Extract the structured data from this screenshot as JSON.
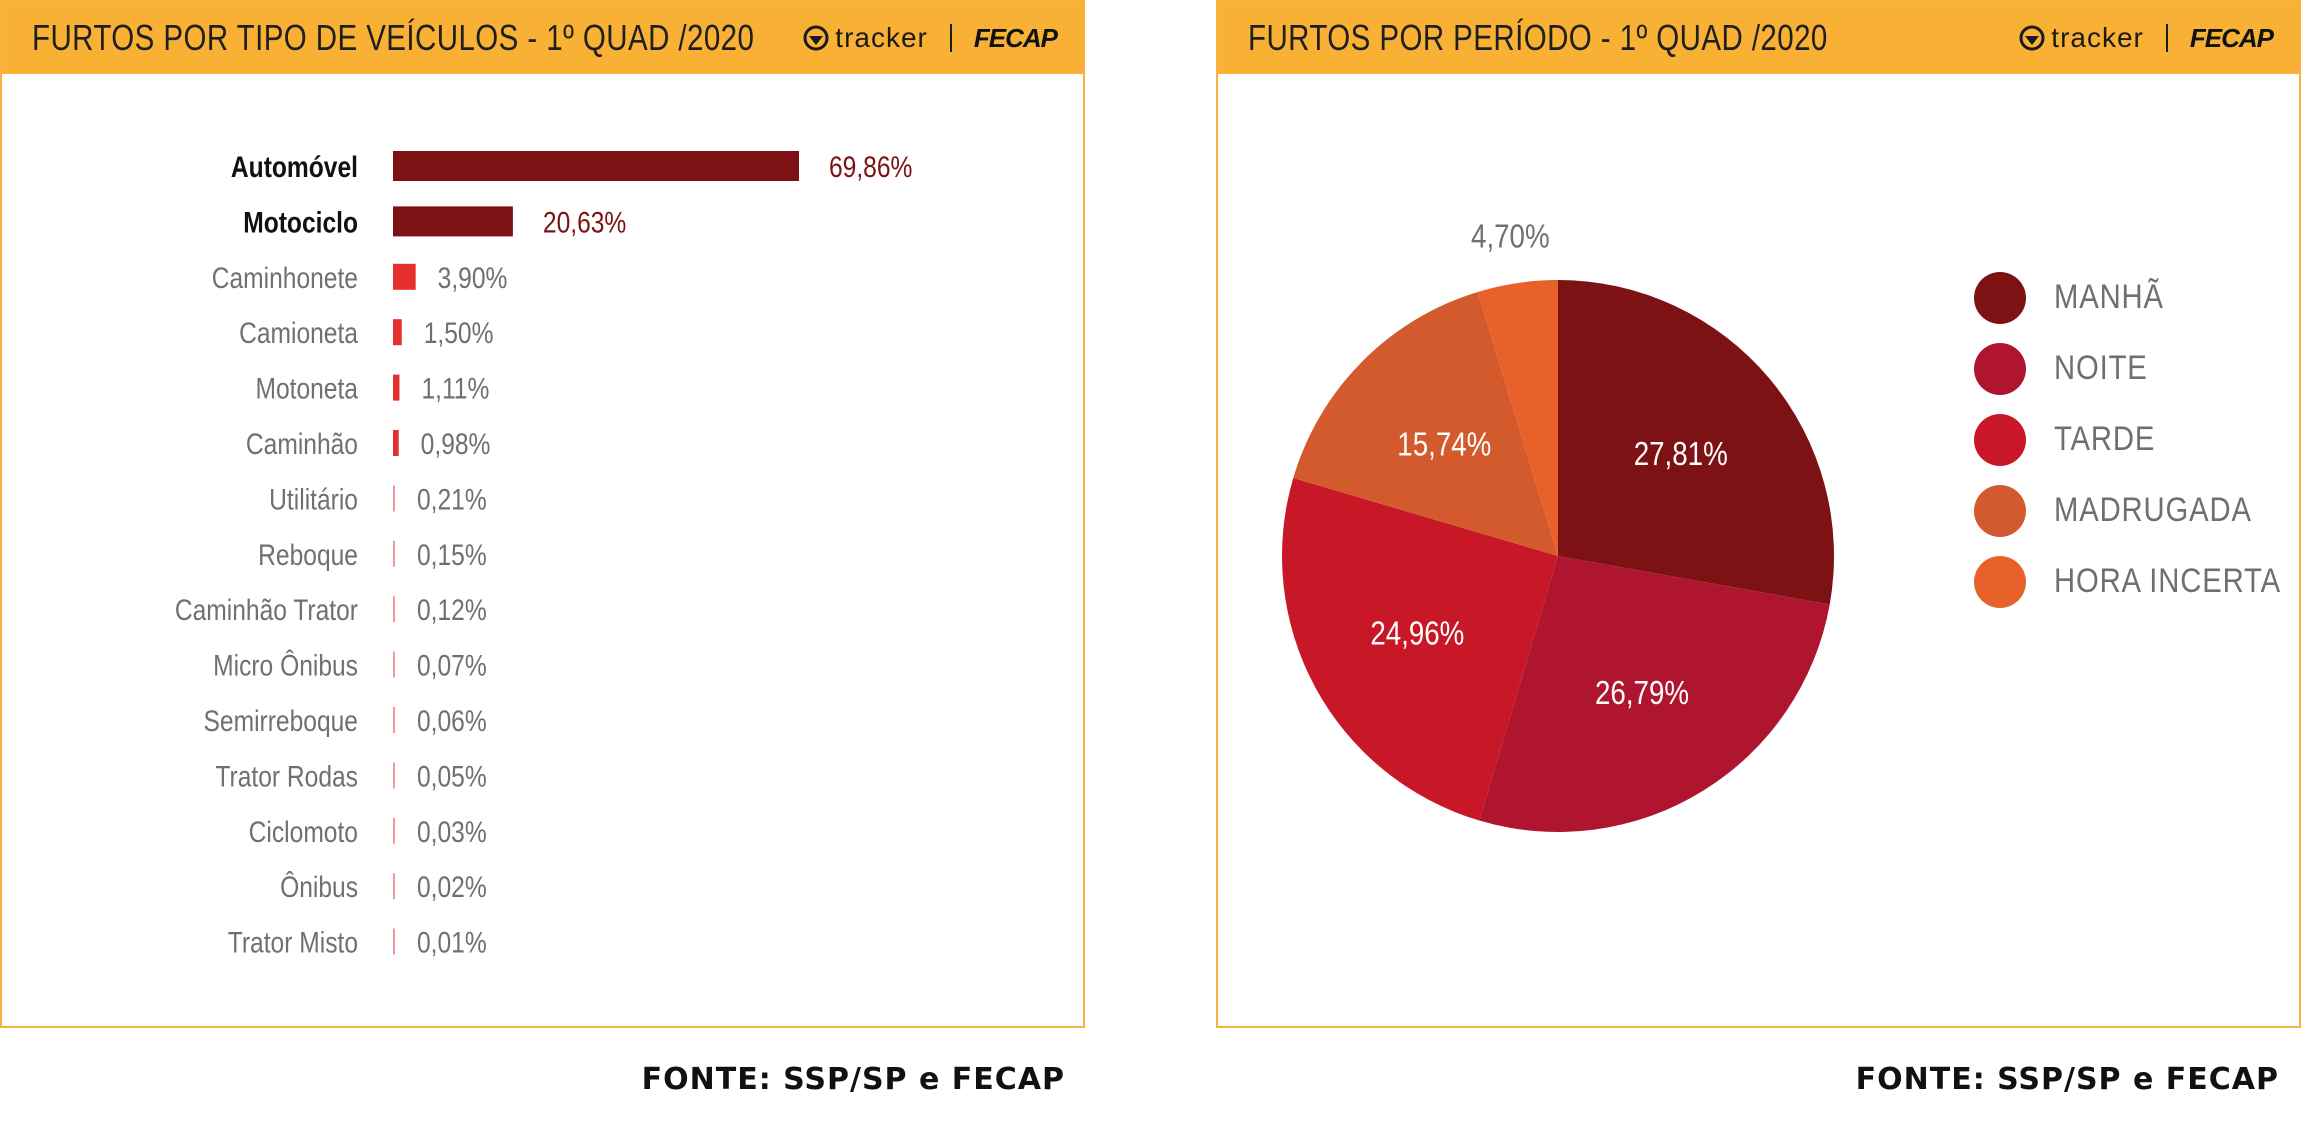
{
  "brand": {
    "name": "tracker",
    "partner": "FECAP",
    "icon": "tracker-logo-icon"
  },
  "left": {
    "title": "FURTOS POR TIPO DE VEÍCULOS - 1º QUAD /2020",
    "source": "FONTE: SSP/SP e FECAP"
  },
  "right": {
    "title": "FURTOS POR PERÍODO - 1º QUAD /2020",
    "source": "FONTE: SSP/SP e FECAP"
  },
  "chart_data": [
    {
      "type": "bar",
      "orientation": "horizontal",
      "title": "FURTOS POR TIPO DE VEÍCULOS - 1º QUAD /2020",
      "categories": [
        "Automóvel",
        "Motociclo",
        "Caminhonete",
        "Camioneta",
        "Motoneta",
        "Caminhão",
        "Utilitário",
        "Reboque",
        "Caminhão Trator",
        "Micro Ônibus",
        "Semirreboque",
        "Trator Rodas",
        "Ciclomoto",
        "Ônibus",
        "Trator Misto"
      ],
      "values": [
        69.86,
        20.63,
        3.9,
        1.5,
        1.11,
        0.98,
        0.21,
        0.15,
        0.12,
        0.07,
        0.06,
        0.05,
        0.03,
        0.02,
        0.01
      ],
      "labels": [
        "69,86%",
        "20,63%",
        "3,90%",
        "1,50%",
        "1,11%",
        "0,98%",
        "0,21%",
        "0,15%",
        "0,12%",
        "0,07%",
        "0,06%",
        "0,05%",
        "0,03%",
        "0,02%",
        "0,01%"
      ],
      "highlight": [
        "Automóvel",
        "Motociclo"
      ],
      "colors": {
        "major": "#7d1214",
        "minor": "#e52f2f",
        "major_label": "#7d1214",
        "minor_label": "#707070",
        "category_major": "#111111",
        "category_minor": "#707070"
      }
    },
    {
      "type": "pie",
      "title": "FURTOS POR PERÍODO - 1º QUAD /2020",
      "categories": [
        "MANHÃ",
        "NOITE",
        "TARDE",
        "MADRUGADA",
        "HORA INCERTA"
      ],
      "values": [
        27.81,
        26.79,
        24.96,
        15.74,
        4.7
      ],
      "labels": [
        "27,81%",
        "26,79%",
        "24,96%",
        "15,74%",
        "4,70%"
      ],
      "colors": [
        "#7d1214",
        "#b0152f",
        "#c81726",
        "#d35a2c",
        "#e8612b"
      ],
      "legend_position": "right"
    }
  ]
}
